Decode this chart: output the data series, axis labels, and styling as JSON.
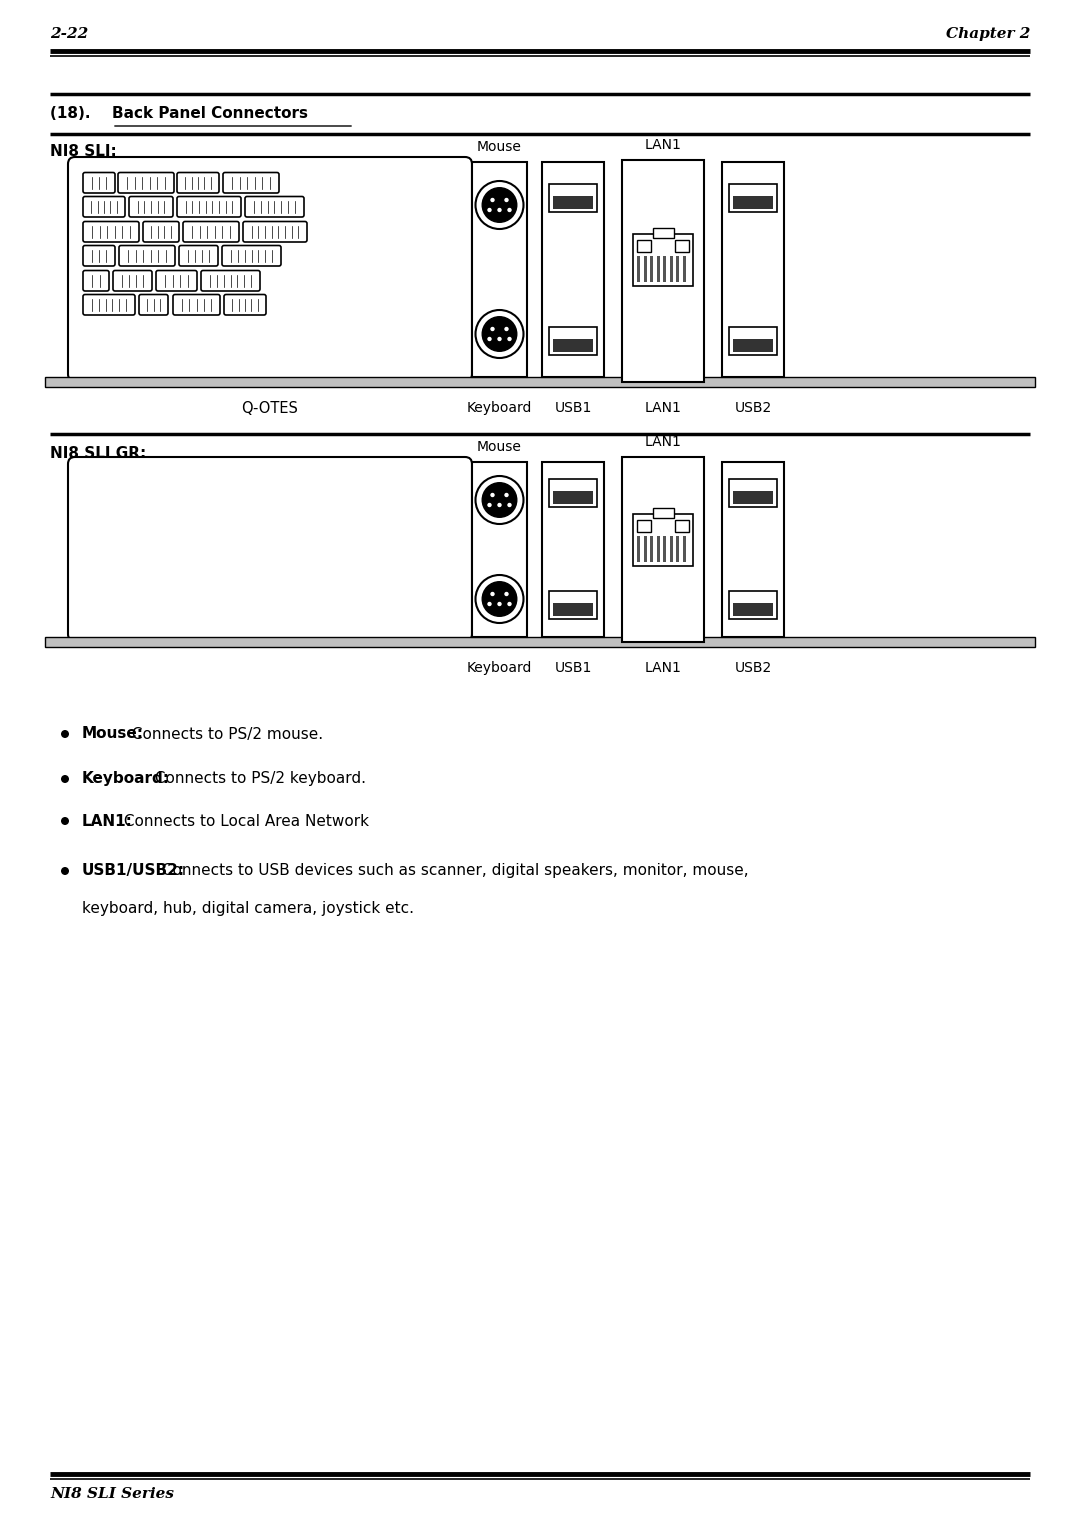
{
  "page_header_left": "2-22",
  "page_header_right": "Chapter 2",
  "section_title_prefix": "(18).  ",
  "section_title_underlined": "Back Panel Connectors",
  "ni8_sli_label": "NI8 SLI:",
  "ni8_sli_gr_label": "NI8 SLI GR:",
  "qotes_label": "Q-OTES",
  "keyboard_label1": "Keyboard",
  "keyboard_label2": "Keyboard",
  "usb1_label1": "USB1",
  "usb1_label2": "USB1",
  "usb2_label1": "USB2",
  "usb2_label2": "USB2",
  "mouse_label1": "Mouse",
  "mouse_label2": "Mouse",
  "lan1_label1": "LAN1",
  "lan1_label2": "LAN1",
  "bullet1_bold": "Mouse:",
  "bullet1_text": " Connects to PS/2 mouse.",
  "bullet2_bold": "Keyboard:",
  "bullet2_text": " Connects to PS/2 keyboard.",
  "bullet3_bold": "LAN1:",
  "bullet3_text": " Connects to Local Area Network",
  "bullet4_bold": "USB1/USB2:",
  "bullet4_text": " Connects to USB devices such as scanner, digital speakers, monitor, mouse,",
  "bullet4_text2": "keyboard, hub, digital camera, joystick etc.",
  "footer_text": "NI8 SLI Series",
  "bg_color": "#ffffff"
}
